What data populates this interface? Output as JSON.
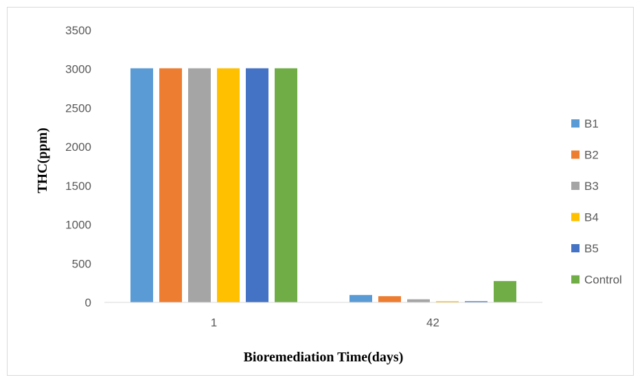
{
  "chart_data": {
    "type": "bar",
    "categories": [
      "1",
      "42"
    ],
    "series": [
      {
        "name": "B1",
        "color": "#5b9bd5",
        "values": [
          3010,
          95
        ]
      },
      {
        "name": "B2",
        "color": "#ed7d31",
        "values": [
          3010,
          80
        ]
      },
      {
        "name": "B3",
        "color": "#a5a5a5",
        "values": [
          3010,
          40
        ]
      },
      {
        "name": "B4",
        "color": "#ffc000",
        "values": [
          3010,
          15
        ]
      },
      {
        "name": "B5",
        "color": "#4472c4",
        "values": [
          3010,
          15
        ]
      },
      {
        "name": "Control",
        "color": "#70ad47",
        "values": [
          3010,
          275
        ]
      }
    ],
    "xlabel": "Bioremediation Time(days)",
    "ylabel": "THC(ppm)",
    "ylim": [
      0,
      3500
    ],
    "yticks": [
      0,
      500,
      1000,
      1500,
      2000,
      2500,
      3000,
      3500
    ],
    "grid": false,
    "legend_position": "right"
  }
}
